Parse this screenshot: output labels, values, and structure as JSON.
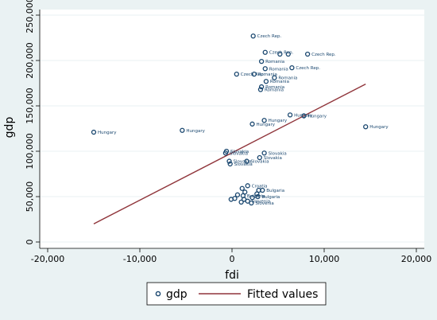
{
  "chart_data": {
    "type": "scatter",
    "xlabel": "fdi",
    "ylabel": "gdp",
    "xlim": [
      -20000,
      20000
    ],
    "ylim": [
      0,
      250000
    ],
    "xticks": [
      "-20,000",
      "-10,000",
      "0",
      "10,000",
      "20,000"
    ],
    "yticks": [
      "0",
      "50,000",
      "100,000",
      "150,000",
      "200,000",
      "250,000"
    ],
    "grid": true,
    "legend_position": "bottom",
    "colors": {
      "scatter": "#1a476f",
      "fit": "#90353b",
      "background": "#eaf2f3",
      "plot_bg": "#ffffff"
    },
    "legend": {
      "scatter": "gdp",
      "fit": "Fitted values"
    },
    "fitted_line": {
      "x": [
        -15000,
        14500
      ],
      "y": [
        20000,
        174000
      ]
    },
    "series": [
      {
        "name": "gdp",
        "points": [
          {
            "x": 2300,
            "y": 227000,
            "label": "Czech Rep."
          },
          {
            "x": 3600,
            "y": 209000,
            "label": "Czech Rep."
          },
          {
            "x": 5200,
            "y": 207000,
            "label": ""
          },
          {
            "x": 6100,
            "y": 207000,
            "label": ""
          },
          {
            "x": 8200,
            "y": 207000,
            "label": "Czech Rep."
          },
          {
            "x": 3200,
            "y": 199000,
            "label": "Romania"
          },
          {
            "x": 3600,
            "y": 191000,
            "label": "Romania"
          },
          {
            "x": 6500,
            "y": 192000,
            "label": "Czech Rep."
          },
          {
            "x": 500,
            "y": 185000,
            "label": "Czech Rep."
          },
          {
            "x": 2400,
            "y": 185000,
            "label": "Romania"
          },
          {
            "x": 4600,
            "y": 181000,
            "label": "Romania"
          },
          {
            "x": 3700,
            "y": 177000,
            "label": "Romania"
          },
          {
            "x": 3200,
            "y": 171000,
            "label": "Romania"
          },
          {
            "x": 3100,
            "y": 168000,
            "label": "Romania"
          },
          {
            "x": 3500,
            "y": 134000,
            "label": "Hungary"
          },
          {
            "x": 2200,
            "y": 130000,
            "label": "Hungary"
          },
          {
            "x": 6300,
            "y": 140000,
            "label": "Hungary"
          },
          {
            "x": 7800,
            "y": 139000,
            "label": "Hungary"
          },
          {
            "x": 14500,
            "y": 127000,
            "label": "Hungary"
          },
          {
            "x": -5400,
            "y": 123000,
            "label": "Hungary"
          },
          {
            "x": -15000,
            "y": 121000,
            "label": "Hungary"
          },
          {
            "x": -600,
            "y": 100000,
            "label": "Slovakia"
          },
          {
            "x": -700,
            "y": 98000,
            "label": "Slovakia"
          },
          {
            "x": 3500,
            "y": 98000,
            "label": "Slovakia"
          },
          {
            "x": 3000,
            "y": 93000,
            "label": "Slovakia"
          },
          {
            "x": -300,
            "y": 89000,
            "label": "Slovakia"
          },
          {
            "x": -200,
            "y": 86000,
            "label": "Slovakia"
          },
          {
            "x": 1600,
            "y": 89000,
            "label": "Slovakia"
          },
          {
            "x": 1700,
            "y": 62000,
            "label": "Croatia"
          },
          {
            "x": 1100,
            "y": 59000,
            "label": ""
          },
          {
            "x": 2900,
            "y": 57000,
            "label": ""
          },
          {
            "x": 3300,
            "y": 57000,
            "label": "Bulgaria"
          },
          {
            "x": 1400,
            "y": 55000,
            "label": ""
          },
          {
            "x": 2700,
            "y": 53000,
            "label": ""
          },
          {
            "x": 600,
            "y": 52000,
            "label": ""
          },
          {
            "x": 1200,
            "y": 51000,
            "label": "Bulgaria"
          },
          {
            "x": 2200,
            "y": 49000,
            "label": ""
          },
          {
            "x": 2800,
            "y": 50000,
            "label": "Bulgaria"
          },
          {
            "x": 300,
            "y": 48000,
            "label": ""
          },
          {
            "x": 1300,
            "y": 47000,
            "label": ""
          },
          {
            "x": 1000,
            "y": 44000,
            "label": ""
          },
          {
            "x": 1700,
            "y": 45000,
            "label": "Slovenia"
          },
          {
            "x": 2100,
            "y": 43000,
            "label": "Slovenia"
          },
          {
            "x": -100,
            "y": 47000,
            "label": ""
          }
        ]
      }
    ]
  }
}
